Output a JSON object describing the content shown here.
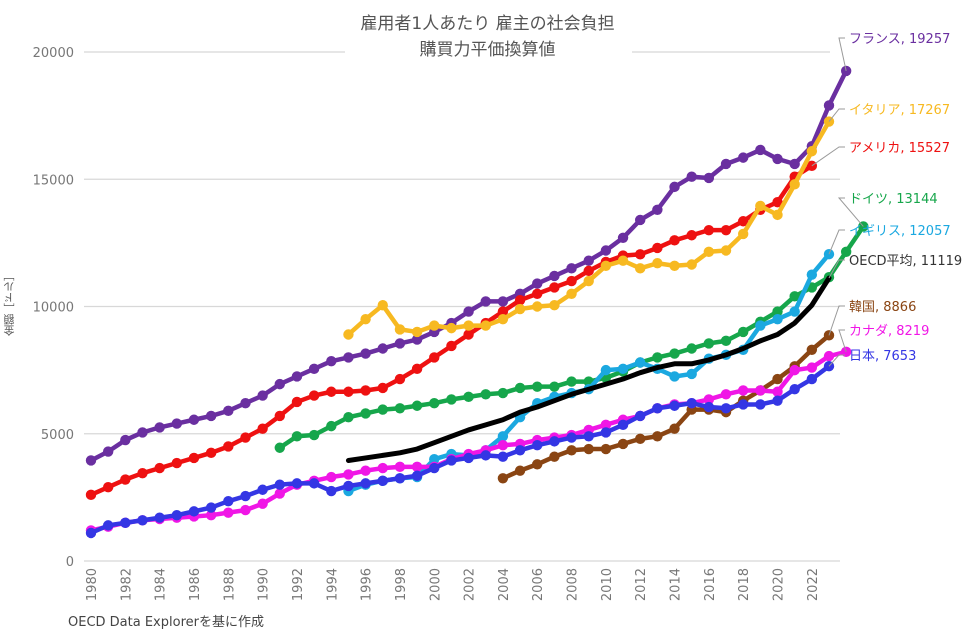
{
  "chart_data": {
    "type": "line",
    "title": "雇用者1人あたり 雇主の社会負担",
    "subtitle": "購買力平価換算値",
    "xlabel": "",
    "ylabel": "金額［ドル］",
    "source": "OECD Data Explorerを基に作成",
    "xlim": [
      1980,
      2023
    ],
    "ylim": [
      0,
      20000
    ],
    "yticks": [
      0,
      5000,
      10000,
      15000,
      20000
    ],
    "xticks": [
      1980,
      1982,
      1984,
      1986,
      1988,
      1990,
      1992,
      1994,
      1996,
      1998,
      2000,
      2002,
      2004,
      2006,
      2008,
      2010,
      2012,
      2014,
      2016,
      2018,
      2020,
      2022
    ],
    "grid": "horizontal",
    "legend": "end-labels-right",
    "series": [
      {
        "name": "フランス",
        "label": "フランス, 19257",
        "color": "#6a2fa0",
        "markers": true,
        "start": 1980,
        "values": [
          3950,
          4300,
          4750,
          5050,
          5250,
          5400,
          5550,
          5700,
          5900,
          6200,
          6500,
          6950,
          7250,
          7550,
          7850,
          8000,
          8150,
          8350,
          8550,
          8700,
          9000,
          9350,
          9800,
          10200,
          10200,
          10500,
          10900,
          11200,
          11500,
          11800,
          12200,
          12700,
          13400,
          13800,
          14700,
          15100,
          15050,
          15600,
          15850,
          16150,
          15800,
          15600,
          16300,
          17900,
          19257
        ]
      },
      {
        "name": "アメリカ",
        "label": "アメリカ, 15527",
        "color": "#ee1111",
        "markers": true,
        "start": 1980,
        "values": [
          2600,
          2900,
          3200,
          3450,
          3650,
          3850,
          4050,
          4250,
          4500,
          4850,
          5200,
          5700,
          6250,
          6500,
          6650,
          6650,
          6700,
          6800,
          7150,
          7550,
          8000,
          8450,
          8900,
          9350,
          9800,
          10250,
          10500,
          10750,
          11000,
          11400,
          11750,
          12000,
          12050,
          12300,
          12600,
          12800,
          13000,
          13000,
          13350,
          13800,
          14100,
          15100,
          15527
        ]
      },
      {
        "name": "イタリア",
        "label": "イタリア, 17267",
        "color": "#f7b921",
        "markers": true,
        "start": 1995,
        "values": [
          8900,
          9500,
          10050,
          9100,
          9000,
          9250,
          9150,
          9250,
          9250,
          9500,
          9900,
          10000,
          10050,
          10500,
          11000,
          11600,
          11800,
          11500,
          11700,
          11600,
          11650,
          12150,
          12200,
          12850,
          13950,
          13600,
          14800,
          16100,
          17267
        ]
      },
      {
        "name": "ドイツ",
        "label": "ドイツ, 13144",
        "color": "#16a64b",
        "markers": true,
        "start": 1991,
        "values": [
          4450,
          4900,
          4950,
          5300,
          5650,
          5800,
          5950,
          6000,
          6100,
          6200,
          6350,
          6450,
          6550,
          6600,
          6800,
          6850,
          6850,
          7050,
          7050,
          7200,
          7450,
          7800,
          8000,
          8150,
          8350,
          8550,
          8650,
          9000,
          9400,
          9800,
          10400,
          10750,
          11150,
          12150,
          13144
        ]
      },
      {
        "name": "イギリス",
        "label": "イギリス, 12057",
        "color": "#1ba8e0",
        "markers": true,
        "start": 1995,
        "values": [
          2750,
          3000,
          3150,
          3250,
          3300,
          4000,
          4200,
          4150,
          4350,
          4900,
          5650,
          6200,
          6450,
          6600,
          6750,
          7500,
          7550,
          7800,
          7550,
          7250,
          7350,
          7950,
          8100,
          8300,
          9250,
          9500,
          9800,
          11250,
          12057
        ]
      },
      {
        "name": "OECD平均",
        "label": "OECD平均, 11119",
        "color": "#000000",
        "markers": false,
        "start": 1995,
        "values": [
          3950,
          4050,
          4150,
          4250,
          4400,
          4650,
          4900,
          5150,
          5350,
          5550,
          5850,
          6050,
          6300,
          6550,
          6750,
          6950,
          7150,
          7400,
          7600,
          7750,
          7750,
          7900,
          8100,
          8350,
          8650,
          8900,
          9350,
          10050,
          11119
        ]
      },
      {
        "name": "韓国",
        "label": "韓国, 8866",
        "color": "#8a4513",
        "markers": true,
        "start": 2004,
        "values": [
          3250,
          3550,
          3800,
          4100,
          4350,
          4400,
          4400,
          4600,
          4800,
          4900,
          5200,
          5950,
          5950,
          5850,
          6300,
          6700,
          7150,
          7650,
          8300,
          8866
        ]
      },
      {
        "name": "カナダ",
        "label": "カナダ, 8219",
        "color": "#f016e6",
        "markers": true,
        "start": 1980,
        "values": [
          1200,
          1350,
          1500,
          1600,
          1650,
          1700,
          1750,
          1800,
          1900,
          2000,
          2250,
          2650,
          3000,
          3150,
          3300,
          3400,
          3550,
          3650,
          3700,
          3700,
          3700,
          4000,
          4200,
          4350,
          4550,
          4600,
          4750,
          4850,
          4950,
          5150,
          5350,
          5550,
          5700,
          6000,
          6150,
          6200,
          6350,
          6550,
          6700,
          6700,
          6650,
          7500,
          7600,
          8050,
          8219
        ]
      },
      {
        "name": "日本",
        "label": "日本, 7653",
        "color": "#3436e4",
        "markers": true,
        "start": 1980,
        "values": [
          1100,
          1400,
          1500,
          1600,
          1700,
          1800,
          1950,
          2100,
          2350,
          2550,
          2800,
          3000,
          3050,
          3050,
          2750,
          2950,
          3050,
          3150,
          3250,
          3350,
          3650,
          3950,
          4050,
          4150,
          4100,
          4350,
          4550,
          4700,
          4850,
          4900,
          5050,
          5350,
          5700,
          6000,
          6100,
          6200,
          6050,
          6000,
          6150,
          6150,
          6300,
          6750,
          7150,
          7653
        ]
      }
    ]
  }
}
